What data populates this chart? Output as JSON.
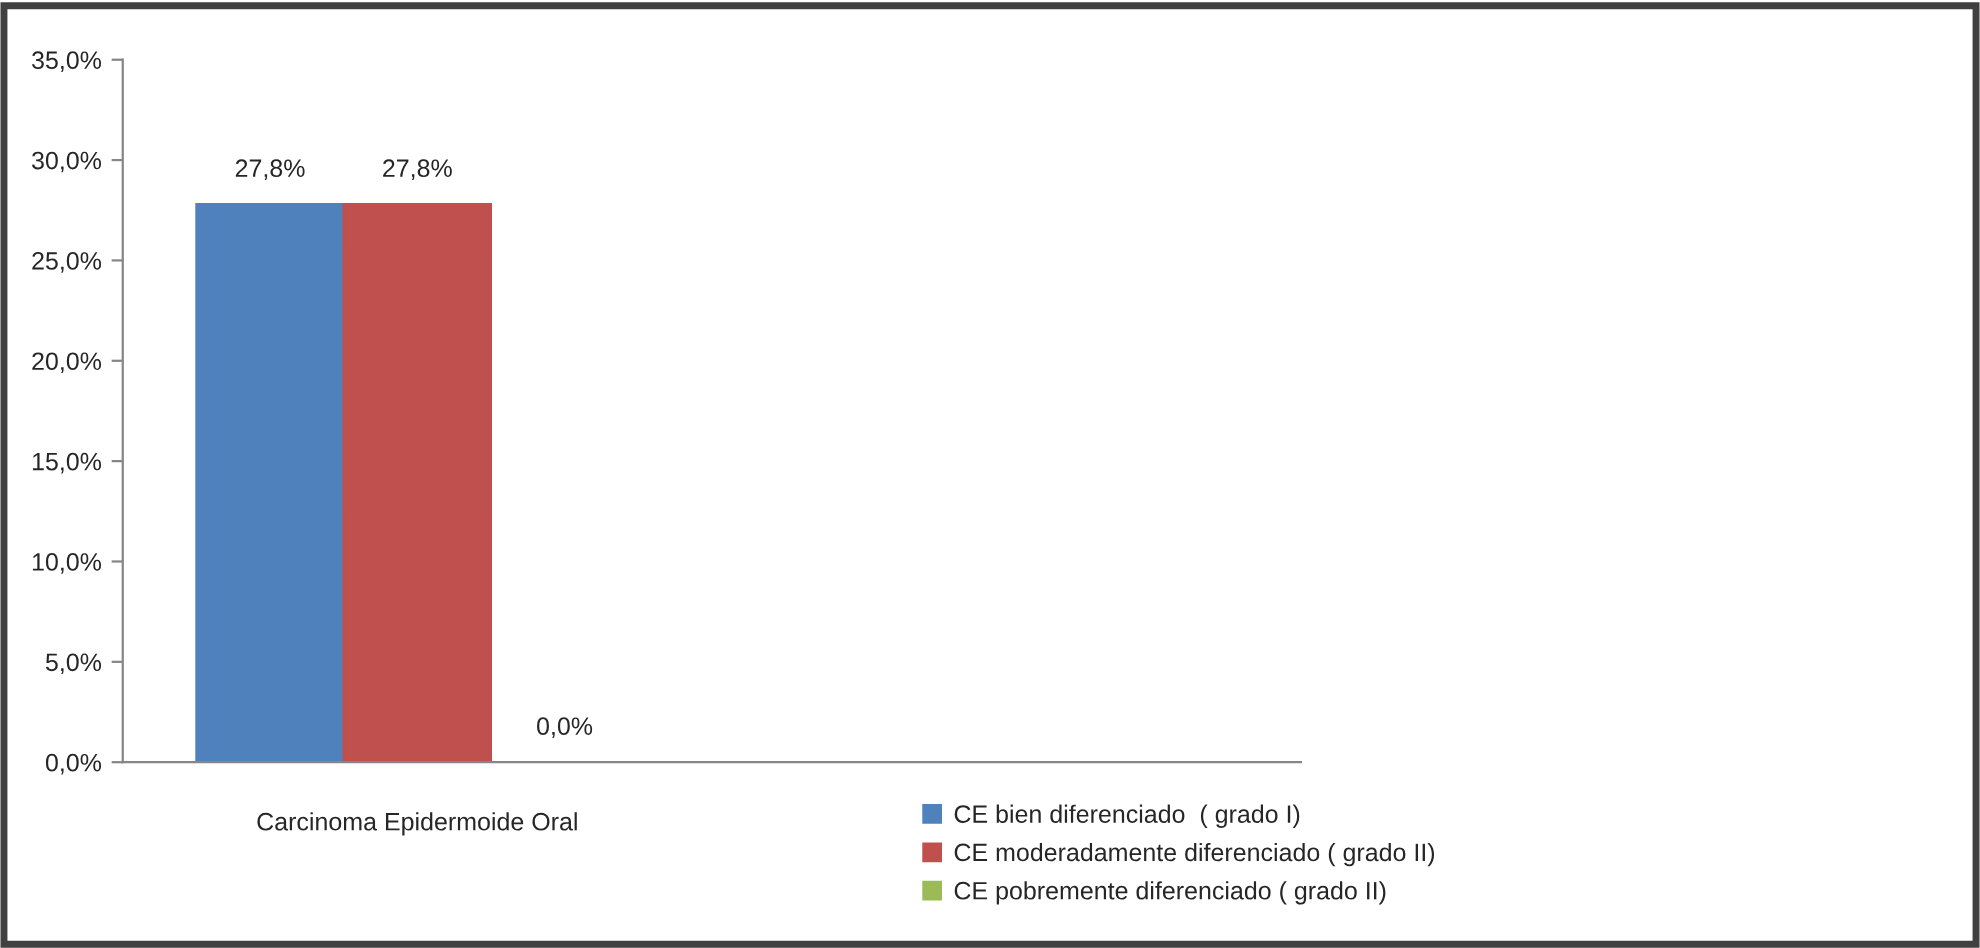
{
  "chart_data": {
    "type": "bar",
    "categories": [
      "Carcinoma Epidermoide Oral",
      null
    ],
    "series": [
      {
        "name": "CE bien diferenciado  ( grado I)",
        "color": "#4f81bd",
        "values": [
          27.8,
          null
        ],
        "value_labels": [
          "27,8%",
          null
        ]
      },
      {
        "name": "CE moderadamente diferenciado ( grado II)",
        "color": "#c0504d",
        "values": [
          27.8,
          null
        ],
        "value_labels": [
          "27,8%",
          null
        ]
      },
      {
        "name": "CE pobremente diferenciado ( grado II)",
        "color": "#9bbb59",
        "values": [
          0.0,
          null
        ],
        "value_labels": [
          "0,0%",
          null
        ]
      }
    ],
    "ylim": [
      0,
      35
    ],
    "yticks": [
      {
        "value": 0,
        "label": "0,0%"
      },
      {
        "value": 5,
        "label": "5,0%"
      },
      {
        "value": 10,
        "label": "10,0%"
      },
      {
        "value": 15,
        "label": "15,0%"
      },
      {
        "value": 20,
        "label": "20,0%"
      },
      {
        "value": 25,
        "label": "25,0%"
      },
      {
        "value": 30,
        "label": "30,0%"
      },
      {
        "value": 35,
        "label": "35,0%"
      }
    ],
    "legend": "bottom right",
    "grid": false
  }
}
